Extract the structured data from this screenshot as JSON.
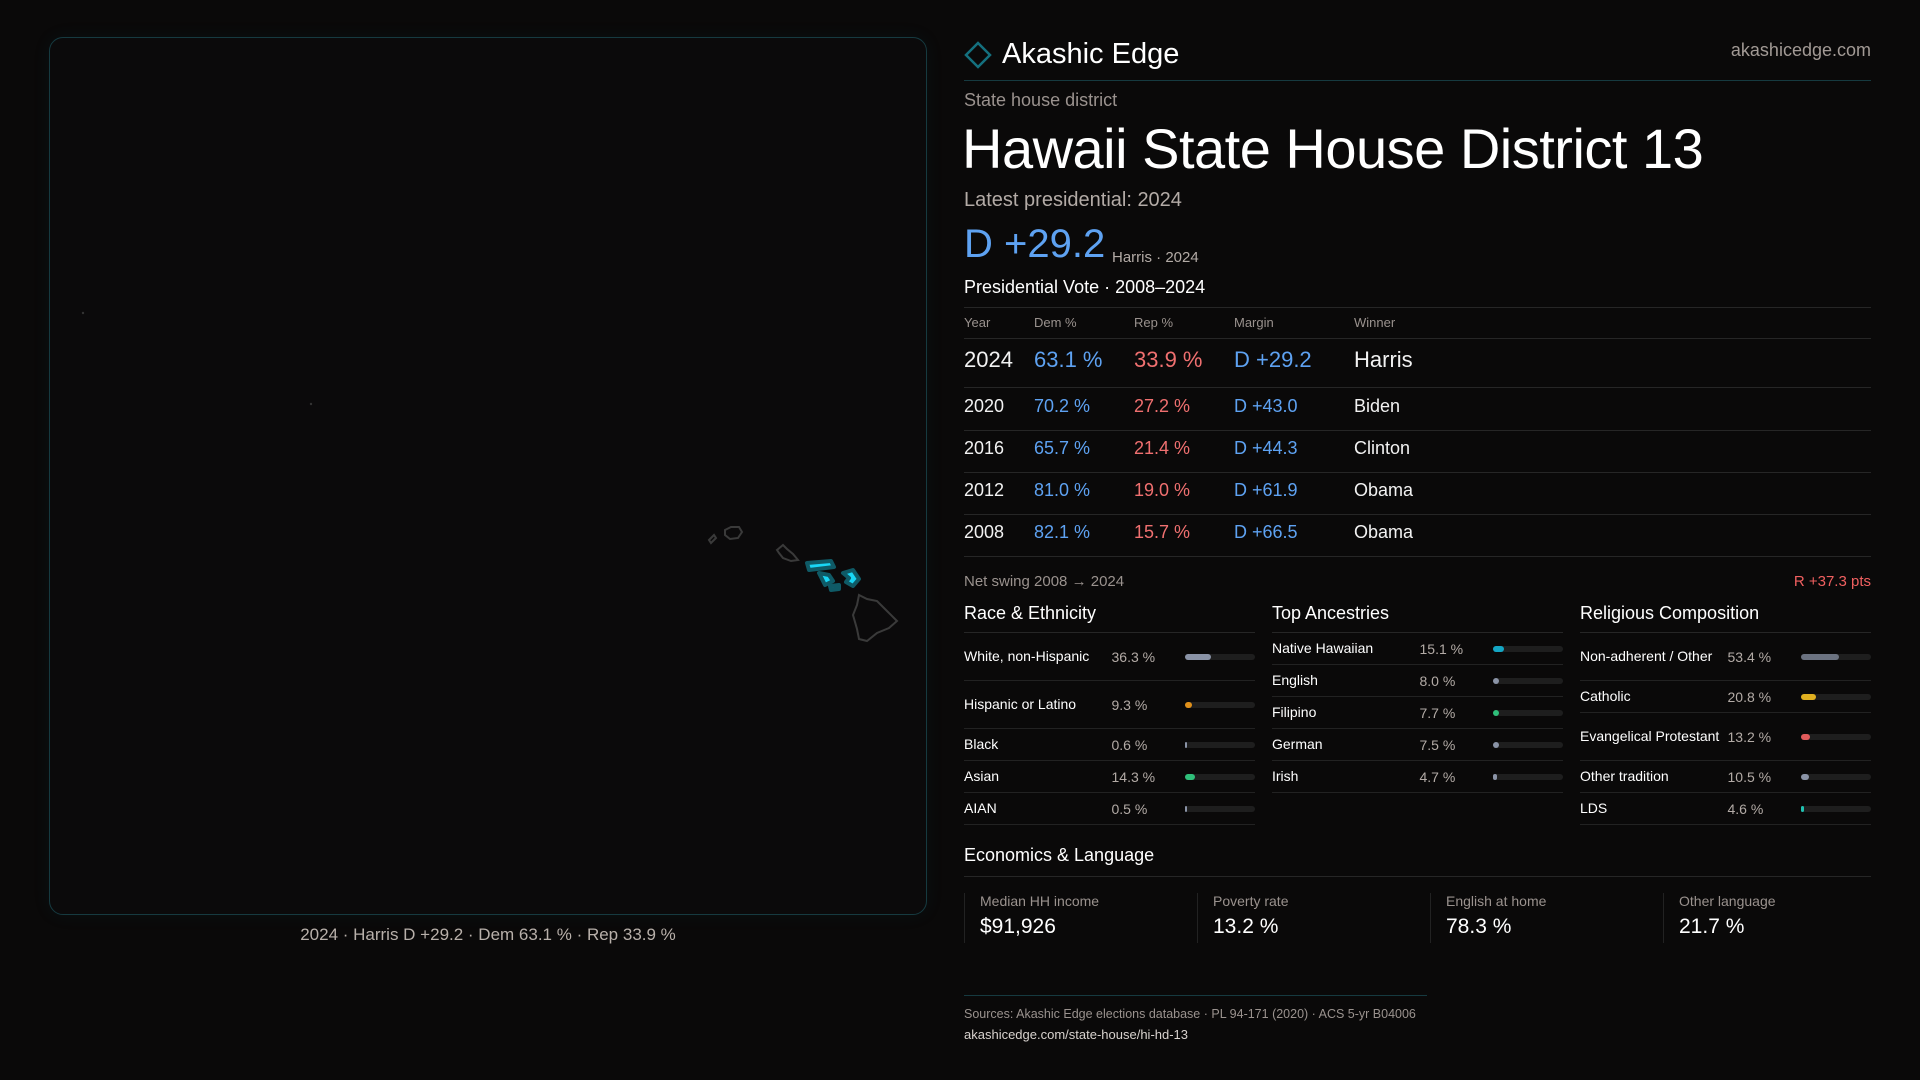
{
  "brand": {
    "name": "Akashic Edge",
    "site": "akashicedge.com",
    "logo_icon": "diamond-icon"
  },
  "kicker": "State house district",
  "title": "Hawaii State House District 13",
  "latest": "Latest presidential: 2024",
  "headline": {
    "margin": "D +29.2",
    "sub": "Harris · 2024"
  },
  "map": {
    "caption": "2024 · Harris D +29.2 · Dem 63.1 % · Rep 33.9 %",
    "highlight_color": "#19d6f5"
  },
  "vote": {
    "title": "Presidential Vote · 2008–2024",
    "headers": [
      "Year",
      "Dem %",
      "Rep %",
      "Margin",
      "Winner"
    ],
    "rows": [
      {
        "year": "2024",
        "dem": "63.1 %",
        "rep": "33.9 %",
        "margin": "D +29.2",
        "winner": "Harris"
      },
      {
        "year": "2020",
        "dem": "70.2 %",
        "rep": "27.2 %",
        "margin": "D +43.0",
        "winner": "Biden"
      },
      {
        "year": "2016",
        "dem": "65.7 %",
        "rep": "21.4 %",
        "margin": "D +44.3",
        "winner": "Clinton"
      },
      {
        "year": "2012",
        "dem": "81.0 %",
        "rep": "19.0 %",
        "margin": "D +61.9",
        "winner": "Obama"
      },
      {
        "year": "2008",
        "dem": "82.1 %",
        "rep": "15.7 %",
        "margin": "D +66.5",
        "winner": "Obama"
      }
    ],
    "swing_label": "Net swing 2008 → 2024",
    "swing_value": "R +37.3 pts"
  },
  "sections": [
    {
      "title": "Race & Ethnicity",
      "items": [
        {
          "label": "White, non-Hispanic",
          "value": "36.3 %",
          "pct": 36.3,
          "color": "#8a93a6"
        },
        {
          "label": "Hispanic or Latino",
          "value": "9.3 %",
          "pct": 9.3,
          "color": "#e0901a"
        },
        {
          "label": "Black",
          "value": "0.6 %",
          "pct": 0.6,
          "color": "#8a93a6"
        },
        {
          "label": "Asian",
          "value": "14.3 %",
          "pct": 14.3,
          "color": "#2fbf7a"
        },
        {
          "label": "AIAN",
          "value": "0.5 %",
          "pct": 0.5,
          "color": "#8a93a6"
        }
      ]
    },
    {
      "title": "Top Ancestries",
      "items": [
        {
          "label": "Native Hawaiian",
          "value": "15.1 %",
          "pct": 15.1,
          "color": "#14a6c4"
        },
        {
          "label": "English",
          "value": "8.0 %",
          "pct": 8.0,
          "color": "#8a93a6"
        },
        {
          "label": "Filipino",
          "value": "7.7 %",
          "pct": 7.7,
          "color": "#2fbf7a"
        },
        {
          "label": "German",
          "value": "7.5 %",
          "pct": 7.5,
          "color": "#8a93a6"
        },
        {
          "label": "Irish",
          "value": "4.7 %",
          "pct": 4.7,
          "color": "#8a93a6"
        }
      ]
    },
    {
      "title": "Religious Composition",
      "items": [
        {
          "label": "Non-adherent / Other",
          "value": "53.4 %",
          "pct": 53.4,
          "color": "#6b7280"
        },
        {
          "label": "Catholic",
          "value": "20.8 %",
          "pct": 20.8,
          "color": "#e0b020"
        },
        {
          "label": "Evangelical Protestant",
          "value": "13.2 %",
          "pct": 13.2,
          "color": "#e05a5a"
        },
        {
          "label": "Other tradition",
          "value": "10.5 %",
          "pct": 10.5,
          "color": "#8a93a6"
        },
        {
          "label": "LDS",
          "value": "4.6 %",
          "pct": 4.6,
          "color": "#20c0b0"
        }
      ]
    }
  ],
  "economics": {
    "title": "Economics & Language",
    "cards": [
      {
        "label": "Median HH income",
        "value": "$91,926"
      },
      {
        "label": "Poverty rate",
        "value": "13.2 %"
      },
      {
        "label": "English at home",
        "value": "78.3 %"
      },
      {
        "label": "Other language",
        "value": "21.7 %"
      }
    ]
  },
  "footer": {
    "sources": "Sources: Akashic Edge elections database · PL 94-171 (2020) · ACS 5-yr B04006",
    "url": "akashicedge.com/state-house/hi-hd-13"
  }
}
